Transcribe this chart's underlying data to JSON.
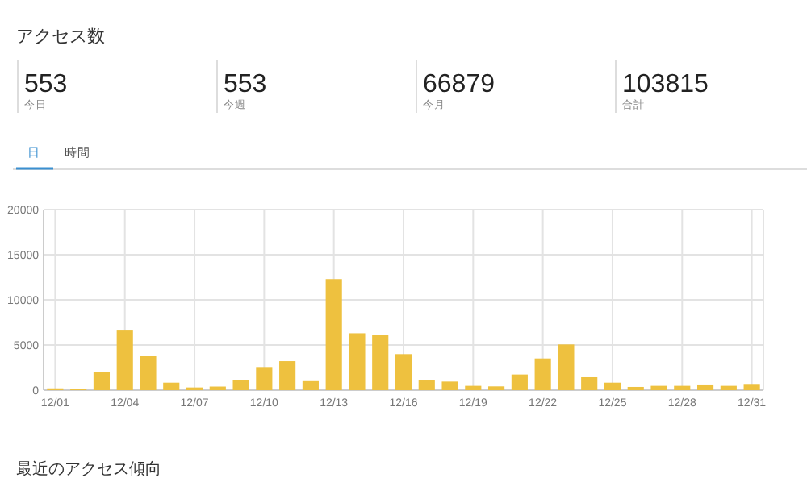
{
  "chart_data": [
    {
      "type": "other",
      "title": "アクセス数",
      "annotations": [
        "553",
        "今日",
        "553",
        "今週",
        "66879",
        "今月",
        "103815",
        "合計",
        "日",
        "時間"
      ]
    },
    {
      "type": "bar",
      "categories": [
        "12/01",
        null,
        null,
        "12/04",
        null,
        null,
        "12/07",
        null,
        null,
        "12/10",
        null,
        null,
        "12/13",
        null,
        null,
        "12/16",
        null,
        null,
        "12/19",
        null,
        null,
        "12/22",
        null,
        null,
        "12/25",
        null,
        null,
        "12/28",
        null,
        null,
        "12/31"
      ],
      "values": [
        200,
        150,
        2000,
        6600,
        3750,
        830,
        300,
        400,
        1130,
        2560,
        3210,
        1000,
        12300,
        6300,
        6070,
        3990,
        1070,
        950,
        480,
        420,
        1730,
        3510,
        5060,
        1430,
        830,
        360,
        480,
        480,
        540,
        480,
        600
      ],
      "color": "#eec13f",
      "ylim": [
        0,
        20000
      ],
      "yticks": [
        0,
        5000,
        10000,
        15000,
        20000
      ],
      "grid": true
    },
    {
      "type": "other",
      "title": "最近のアクセス傾向"
    }
  ]
}
